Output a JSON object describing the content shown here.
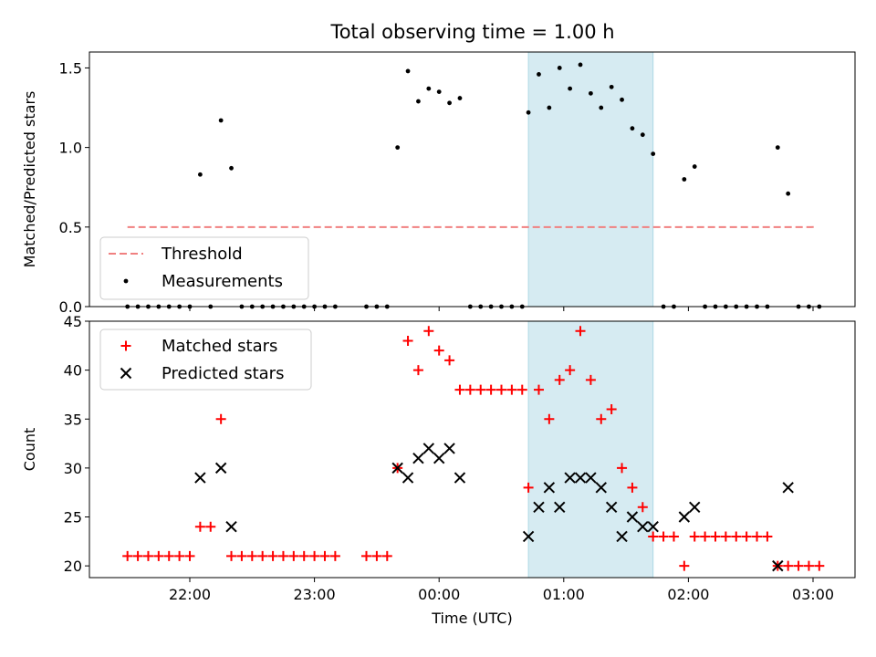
{
  "title": "Total observing time = 1.00 h",
  "chart_data": [
    {
      "type": "scatter",
      "ylabel": "Matched/Predicted stars",
      "xlabel": "",
      "ylim": [
        0,
        1.6
      ],
      "yticks": [
        "0.0",
        "0.5",
        "1.0",
        "1.5"
      ],
      "ytick_values": [
        0,
        0.5,
        1.0,
        1.5
      ],
      "threshold": {
        "label": "Threshold",
        "value": 0.5,
        "x_start": "21:30",
        "x_end": "03:02",
        "color": "#f08080"
      },
      "shaded_region": {
        "start": "00:43",
        "end": "01:43",
        "color": "#add8e6"
      },
      "legend": {
        "placement": "lower-left",
        "entries": [
          "Threshold",
          "Measurements"
        ]
      },
      "series": [
        {
          "name": "Measurements",
          "marker": "dot",
          "color": "#000000",
          "points": [
            [
              "21:30",
              0
            ],
            [
              "21:35",
              0
            ],
            [
              "21:40",
              0
            ],
            [
              "21:45",
              0
            ],
            [
              "21:50",
              0
            ],
            [
              "21:55",
              0
            ],
            [
              "22:00",
              0
            ],
            [
              "22:05",
              0.83
            ],
            [
              "22:10",
              0
            ],
            [
              "22:15",
              1.17
            ],
            [
              "22:20",
              0.87
            ],
            [
              "22:25",
              0
            ],
            [
              "22:30",
              0
            ],
            [
              "22:35",
              0
            ],
            [
              "22:40",
              0
            ],
            [
              "22:45",
              0
            ],
            [
              "22:50",
              0
            ],
            [
              "22:55",
              0
            ],
            [
              "23:00",
              0
            ],
            [
              "23:05",
              0
            ],
            [
              "23:10",
              0
            ],
            [
              "23:25",
              0
            ],
            [
              "23:30",
              0
            ],
            [
              "23:35",
              0
            ],
            [
              "23:40",
              1.0
            ],
            [
              "23:45",
              1.48
            ],
            [
              "23:50",
              1.29
            ],
            [
              "23:55",
              1.37
            ],
            [
              "00:00",
              1.35
            ],
            [
              "00:05",
              1.28
            ],
            [
              "00:10",
              1.31
            ],
            [
              "00:15",
              0
            ],
            [
              "00:20",
              0
            ],
            [
              "00:25",
              0
            ],
            [
              "00:30",
              0
            ],
            [
              "00:35",
              0
            ],
            [
              "00:40",
              0
            ],
            [
              "00:43",
              1.22
            ],
            [
              "00:48",
              1.46
            ],
            [
              "00:53",
              1.25
            ],
            [
              "00:58",
              1.5
            ],
            [
              "01:03",
              1.37
            ],
            [
              "01:08",
              1.52
            ],
            [
              "01:13",
              1.34
            ],
            [
              "01:18",
              1.25
            ],
            [
              "01:23",
              1.38
            ],
            [
              "01:28",
              1.3
            ],
            [
              "01:33",
              1.12
            ],
            [
              "01:38",
              1.08
            ],
            [
              "01:43",
              0.96
            ],
            [
              "01:48",
              0
            ],
            [
              "01:53",
              0
            ],
            [
              "01:58",
              0.8
            ],
            [
              "02:03",
              0.88
            ],
            [
              "02:08",
              0
            ],
            [
              "02:13",
              0
            ],
            [
              "02:18",
              0
            ],
            [
              "02:23",
              0
            ],
            [
              "02:28",
              0
            ],
            [
              "02:33",
              0
            ],
            [
              "02:38",
              0
            ],
            [
              "02:43",
              1.0
            ],
            [
              "02:48",
              0.71
            ],
            [
              "02:53",
              0
            ],
            [
              "02:58",
              0
            ],
            [
              "03:03",
              0
            ]
          ]
        }
      ]
    },
    {
      "type": "scatter",
      "ylabel": "Count",
      "xlabel": "Time (UTC)",
      "ylim": [
        18.8,
        45
      ],
      "yticks": [
        "20",
        "25",
        "30",
        "35",
        "40",
        "45"
      ],
      "ytick_values": [
        20,
        25,
        30,
        35,
        40,
        45
      ],
      "xticks": [
        "22:00",
        "23:00",
        "00:00",
        "01:00",
        "02:00",
        "03:00"
      ],
      "shaded_region": {
        "start": "00:43",
        "end": "01:43",
        "color": "#add8e6"
      },
      "legend": {
        "placement": "top-left",
        "entries": [
          "Matched stars",
          "Predicted stars"
        ]
      },
      "series": [
        {
          "name": "Matched stars",
          "marker": "plus",
          "color": "#ff0000",
          "points": [
            [
              "21:30",
              21
            ],
            [
              "21:35",
              21
            ],
            [
              "21:40",
              21
            ],
            [
              "21:45",
              21
            ],
            [
              "21:50",
              21
            ],
            [
              "21:55",
              21
            ],
            [
              "22:00",
              21
            ],
            [
              "22:05",
              24
            ],
            [
              "22:10",
              24
            ],
            [
              "22:15",
              35
            ],
            [
              "22:20",
              21
            ],
            [
              "22:25",
              21
            ],
            [
              "22:30",
              21
            ],
            [
              "22:35",
              21
            ],
            [
              "22:40",
              21
            ],
            [
              "22:45",
              21
            ],
            [
              "22:50",
              21
            ],
            [
              "22:55",
              21
            ],
            [
              "23:00",
              21
            ],
            [
              "23:05",
              21
            ],
            [
              "23:10",
              21
            ],
            [
              "23:25",
              21
            ],
            [
              "23:30",
              21
            ],
            [
              "23:35",
              21
            ],
            [
              "23:40",
              30
            ],
            [
              "23:45",
              43
            ],
            [
              "23:50",
              40
            ],
            [
              "23:55",
              44
            ],
            [
              "00:00",
              42
            ],
            [
              "00:05",
              41
            ],
            [
              "00:10",
              38
            ],
            [
              "00:15",
              38
            ],
            [
              "00:20",
              38
            ],
            [
              "00:25",
              38
            ],
            [
              "00:30",
              38
            ],
            [
              "00:35",
              38
            ],
            [
              "00:40",
              38
            ],
            [
              "00:43",
              28
            ],
            [
              "00:48",
              38
            ],
            [
              "00:53",
              35
            ],
            [
              "00:58",
              39
            ],
            [
              "01:03",
              40
            ],
            [
              "01:08",
              44
            ],
            [
              "01:13",
              39
            ],
            [
              "01:18",
              35
            ],
            [
              "01:23",
              36
            ],
            [
              "01:28",
              30
            ],
            [
              "01:33",
              28
            ],
            [
              "01:38",
              26
            ],
            [
              "01:43",
              23
            ],
            [
              "01:48",
              23
            ],
            [
              "01:53",
              23
            ],
            [
              "01:58",
              20
            ],
            [
              "02:03",
              23
            ],
            [
              "02:08",
              23
            ],
            [
              "02:13",
              23
            ],
            [
              "02:18",
              23
            ],
            [
              "02:23",
              23
            ],
            [
              "02:28",
              23
            ],
            [
              "02:33",
              23
            ],
            [
              "02:38",
              23
            ],
            [
              "02:43",
              20
            ],
            [
              "02:48",
              20
            ],
            [
              "02:53",
              20
            ],
            [
              "02:58",
              20
            ],
            [
              "03:03",
              20
            ]
          ]
        },
        {
          "name": "Predicted stars",
          "marker": "x",
          "color": "#000000",
          "points": [
            [
              "22:05",
              29
            ],
            [
              "22:15",
              30
            ],
            [
              "22:20",
              24
            ],
            [
              "23:40",
              30
            ],
            [
              "23:45",
              29
            ],
            [
              "23:50",
              31
            ],
            [
              "23:55",
              32
            ],
            [
              "00:00",
              31
            ],
            [
              "00:05",
              32
            ],
            [
              "00:10",
              29
            ],
            [
              "00:43",
              23
            ],
            [
              "00:48",
              26
            ],
            [
              "00:53",
              28
            ],
            [
              "00:58",
              26
            ],
            [
              "01:03",
              29
            ],
            [
              "01:08",
              29
            ],
            [
              "01:13",
              29
            ],
            [
              "01:18",
              28
            ],
            [
              "01:23",
              26
            ],
            [
              "01:28",
              23
            ],
            [
              "01:33",
              25
            ],
            [
              "01:38",
              24
            ],
            [
              "01:43",
              24
            ],
            [
              "01:58",
              25
            ],
            [
              "02:03",
              26
            ],
            [
              "02:43",
              20
            ],
            [
              "02:48",
              28
            ]
          ]
        }
      ]
    }
  ]
}
